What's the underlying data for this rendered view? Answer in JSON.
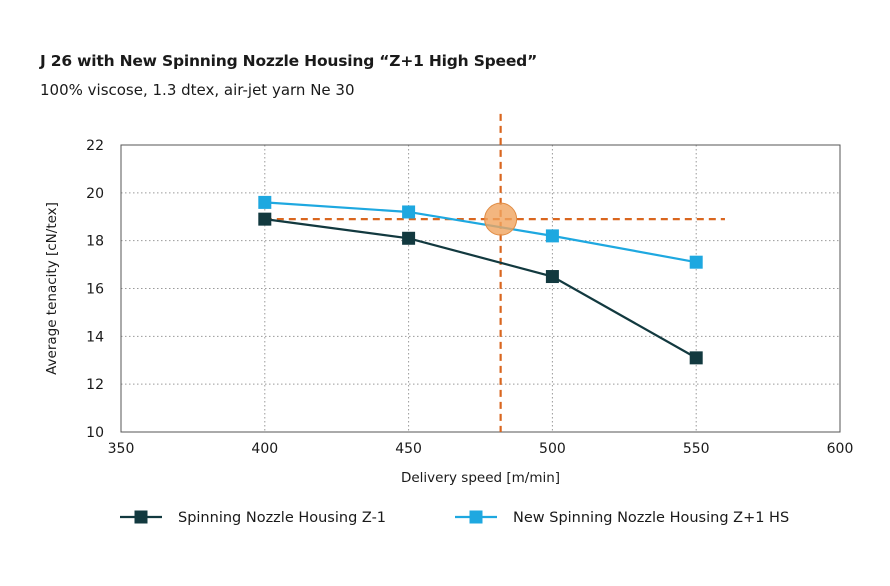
{
  "chart_data": {
    "type": "line",
    "title": "J 26 with New Spinning Nozzle Housing “Z+1 High Speed”",
    "subtitle": "100% viscose, 1.3 dtex, air-jet yarn Ne 30",
    "xlabel": "Delivery speed [m/min]",
    "ylabel": "Average tenacity [cN/tex]",
    "xlim": [
      350,
      600
    ],
    "ylim": [
      10,
      22
    ],
    "x_ticks": [
      "350",
      "400",
      "450",
      "500",
      "550",
      "600"
    ],
    "y_ticks": [
      "10",
      "12",
      "14",
      "16",
      "18",
      "20",
      "22"
    ],
    "x_tick_values": [
      350,
      400,
      450,
      500,
      550,
      600
    ],
    "y_tick_values": [
      10,
      12,
      14,
      16,
      18,
      20,
      22
    ],
    "grid": true,
    "legend_position": "bottom",
    "series": [
      {
        "name": "Spinning Nozzle Housing Z-1",
        "color": "#12393f",
        "marker": "square",
        "x": [
          400,
          450,
          500,
          550
        ],
        "y": [
          18.9,
          18.1,
          16.5,
          13.1
        ]
      },
      {
        "name": "New Spinning Nozzle Housing Z+1 HS",
        "color": "#1ea8e0",
        "marker": "square",
        "x": [
          400,
          450,
          500,
          550
        ],
        "y": [
          19.6,
          19.2,
          18.2,
          17.1
        ]
      }
    ],
    "annotations": {
      "horizontal_reference": {
        "y": 18.9,
        "x_from": 400,
        "x_to": 560,
        "color": "#d9661f",
        "style": "dashed"
      },
      "vertical_reference": {
        "x": 482,
        "y_from": 10,
        "y_to": 23.3,
        "color": "#d9661f",
        "style": "dashed"
      },
      "highlight": {
        "x": 482,
        "y": 18.9,
        "color": "#f0a45f"
      }
    }
  }
}
